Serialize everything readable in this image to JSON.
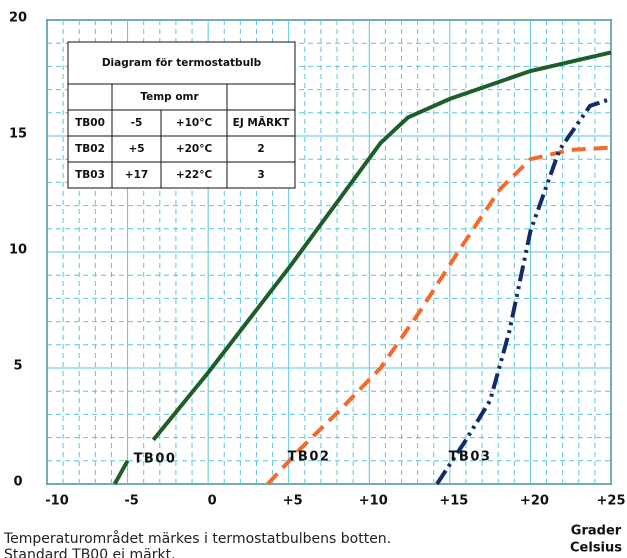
{
  "chart_data": {
    "type": "line",
    "xlim": [
      -10,
      25
    ],
    "xticks": [
      -10,
      -5,
      0,
      {
        "value": 5,
        "label": "+5"
      },
      {
        "value": 10,
        "label": "+10"
      },
      {
        "value": 15,
        "label": "+15"
      },
      {
        "value": 20,
        "label": "+20"
      },
      {
        "value": 25,
        "label": "+25"
      }
    ],
    "ylim": [
      0,
      20
    ],
    "yticks": [
      0,
      5,
      10,
      15,
      20
    ],
    "x_minor_grid": [
      -9,
      -8,
      -7,
      -6,
      -4,
      -3,
      -2,
      -1,
      1,
      2,
      3,
      4,
      6,
      7,
      8,
      9,
      11,
      12,
      13,
      14,
      16,
      17,
      18,
      19,
      21,
      22,
      23,
      24
    ],
    "y_minor_grid": [
      1,
      2,
      3,
      4,
      6,
      7,
      8,
      9,
      11,
      12,
      13,
      14,
      16,
      17,
      18,
      19
    ],
    "grid": true,
    "xlabel": [
      "Grader",
      "Celsius"
    ],
    "series": [
      {
        "name": "TB00",
        "color": "#1e5e2a",
        "dash": "solid",
        "x": [
          -5.8,
          -5.0,
          null,
          -3.4,
          0,
          5.1,
          8.8,
          10.7,
          12.4,
          15,
          20,
          25
        ],
        "values": [
          0,
          1.0,
          null,
          1.9,
          4.8,
          9.4,
          12.9,
          14.7,
          15.8,
          16.6,
          17.8,
          18.6
        ]
      },
      {
        "name": "TB02",
        "color": "#f26a2e",
        "dash": "dashed",
        "x": [
          3.7,
          5.7,
          8.2,
          10.7,
          13.2,
          15.6,
          18.1,
          20,
          22.5,
          25
        ],
        "values": [
          0,
          1.5,
          3.2,
          5.0,
          7.5,
          10.1,
          12.7,
          14.0,
          14.4,
          14.5
        ]
      },
      {
        "name": "TB03",
        "color": "#142c66",
        "dash": "dashdot",
        "x": [
          14.2,
          16,
          17.5,
          18.7,
          20,
          21.8,
          23.7,
          25
        ],
        "values": [
          0,
          1.9,
          3.6,
          6.6,
          10.9,
          14.4,
          16.3,
          16.6
        ]
      }
    ],
    "table": {
      "title": "Diagram för termostatbulb",
      "header": "Temp omr",
      "rows": [
        [
          "TB00",
          "-5",
          "+10°C",
          "EJ MÄRKT"
        ],
        [
          "TB02",
          "+5",
          "+20°C",
          "2"
        ],
        [
          "TB03",
          "+17",
          "+22°C",
          "3"
        ]
      ]
    },
    "notes": [
      "Temperaturområdet märkes i termostatbulbens botten.",
      "Standard TB00 ej märkt."
    ]
  }
}
